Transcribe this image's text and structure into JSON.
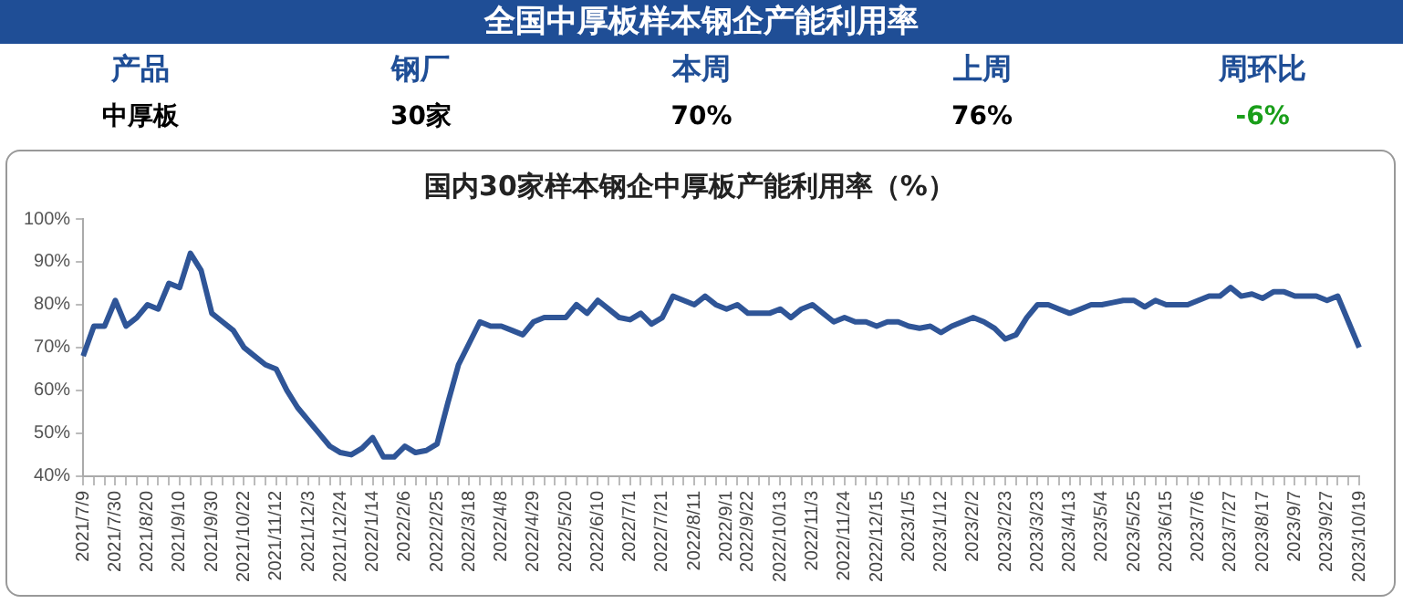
{
  "chart_data": {
    "type": "line",
    "title": "全国中厚板样本钢企产能利用率",
    "subtitle": "国内30家样本钢企中厚板产能利用率（%）",
    "annotations": [
      "产品",
      "钢厂",
      "本周",
      "上周",
      "周环比",
      "中厚板",
      "30家",
      "70%",
      "76%",
      "-6%"
    ],
    "categories": [
      "2021/7/9",
      null,
      null,
      "2021/7/30",
      null,
      null,
      "2021/8/20",
      null,
      null,
      "2021/9/10",
      null,
      null,
      "2021/9/30",
      null,
      null,
      "2021/10/22",
      null,
      null,
      "2021/11/12",
      null,
      null,
      "2021/12/3",
      null,
      null,
      "2021/12/24",
      null,
      null,
      "2022/1/14",
      null,
      null,
      "2022/2/6",
      null,
      null,
      "2022/2/25",
      null,
      null,
      "2022/3/18",
      null,
      null,
      "2022/4/8",
      null,
      null,
      "2022/4/29",
      null,
      null,
      "2022/5/20",
      null,
      null,
      "2022/6/10",
      null,
      null,
      "2022/7/1",
      null,
      null,
      "2022/7/21",
      null,
      null,
      "2022/8/11",
      null,
      null,
      "2022/9/1",
      null,
      "2022/9/22",
      null,
      null,
      "2022/10/13",
      null,
      null,
      "2022/11/3",
      null,
      null,
      "2022/11/24",
      null,
      null,
      "2022/12/15",
      null,
      null,
      "2023/1/5",
      null,
      null,
      "2023/1/12",
      null,
      null,
      "2023/2/2",
      null,
      null,
      "2023/2/23",
      null,
      null,
      "2023/3/23",
      null,
      null,
      "2023/4/13",
      null,
      null,
      "2023/5/4",
      null,
      null,
      "2023/5/25",
      null,
      null,
      "2023/6/15",
      null,
      null,
      "2023/7/6",
      null,
      null,
      "2023/7/27",
      null,
      null,
      "2023/8/17",
      null,
      null,
      "2023/9/7",
      null,
      null,
      "2023/9/27",
      null,
      null,
      "2023/10/19"
    ],
    "series": [
      {
        "color": "#2f5597",
        "values": [
          68,
          75,
          75,
          81,
          75,
          77,
          80,
          79,
          85,
          84,
          92,
          88,
          78,
          76,
          74,
          70,
          68,
          66,
          65,
          60,
          56,
          53,
          50,
          47,
          45.5,
          45,
          46.5,
          49,
          44.5,
          44.5,
          47,
          45.5,
          46,
          47.5,
          57,
          66,
          71,
          76,
          75,
          75,
          74,
          73,
          76,
          77,
          77,
          77,
          80,
          78,
          81,
          79,
          77,
          76.5,
          78,
          75.5,
          77,
          82,
          81,
          80,
          82,
          80,
          79,
          80,
          78,
          78,
          78,
          79,
          77,
          79,
          80,
          78,
          76,
          77,
          76,
          76,
          75,
          76,
          76,
          75,
          74.5,
          75,
          73.5,
          75,
          76,
          77,
          76,
          74.5,
          72,
          73,
          77,
          80,
          80,
          79,
          78,
          79,
          80,
          80,
          80.5,
          81,
          81,
          79.5,
          81,
          80,
          80,
          80,
          81,
          82,
          82,
          84,
          82,
          82.5,
          81.5,
          83,
          83,
          82,
          82,
          82,
          81,
          82,
          76,
          70
        ]
      }
    ],
    "ylim": [
      40,
      100
    ],
    "yticks": [
      {
        "value": 40,
        "label": "40%"
      },
      {
        "value": 50,
        "label": "50%"
      },
      {
        "value": 60,
        "label": "60%"
      },
      {
        "value": 70,
        "label": "70%"
      },
      {
        "value": 80,
        "label": "80%"
      },
      {
        "value": 90,
        "label": "90%"
      },
      {
        "value": 100,
        "label": "100%"
      }
    ],
    "grid": false,
    "legend": false,
    "marker": "none",
    "line_style": "solid"
  }
}
